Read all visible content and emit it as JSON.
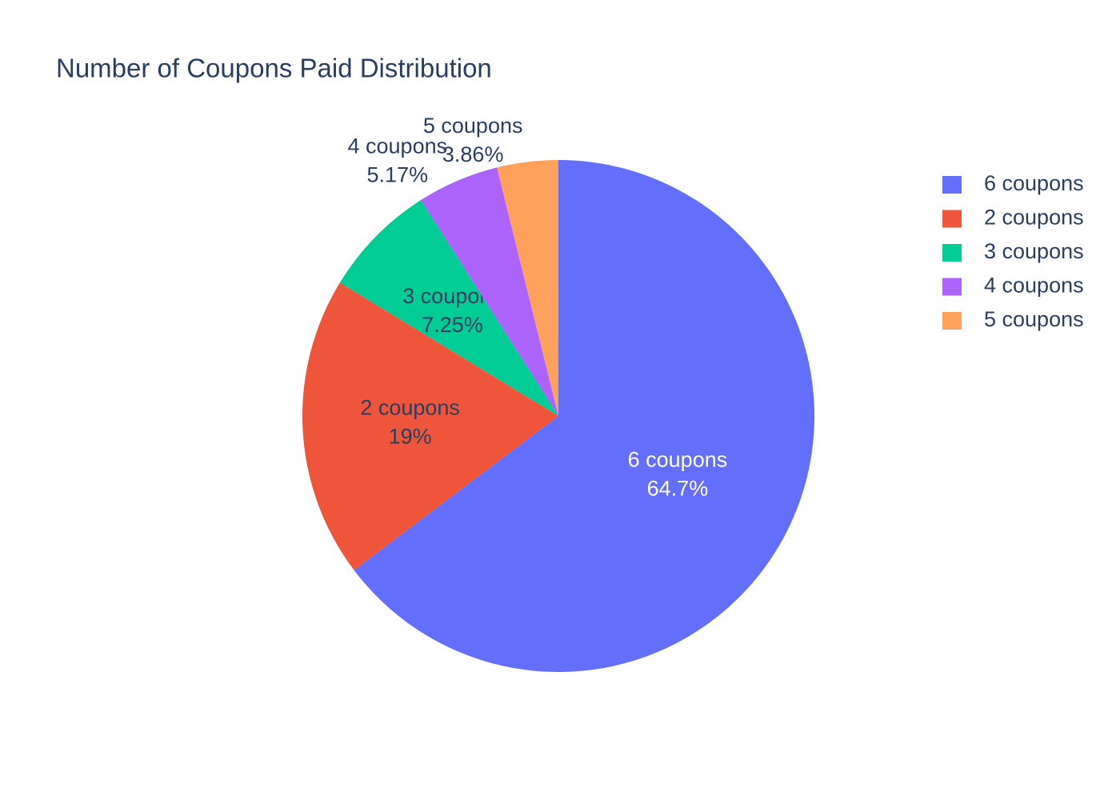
{
  "chart_data": {
    "type": "pie",
    "title": "Number of Coupons Paid Distribution",
    "categories": [
      "6 coupons",
      "2 coupons",
      "3 coupons",
      "4 coupons",
      "5 coupons"
    ],
    "values": [
      64.7,
      19,
      7.25,
      5.17,
      3.86
    ],
    "value_labels": [
      "64.7%",
      "19%",
      "7.25%",
      "5.17%",
      "3.86%"
    ],
    "colors": [
      "#636efa",
      "#ef553b",
      "#00cc96",
      "#ab63fa",
      "#ffa15a"
    ],
    "legend": "top-right"
  }
}
